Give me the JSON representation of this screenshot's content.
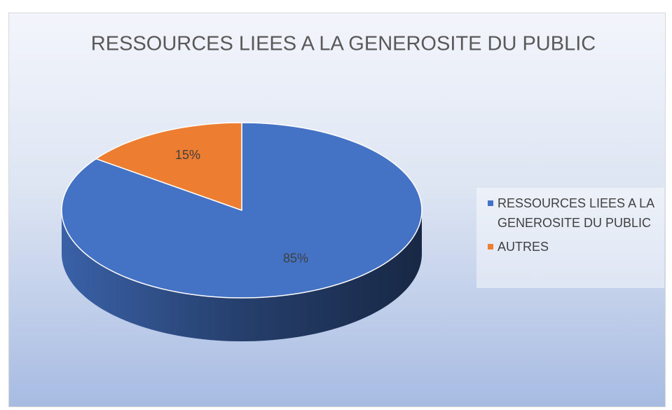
{
  "chart_data": {
    "type": "pie",
    "title": "RESSOURCES LIEES A LA GENEROSITE DU PUBLIC",
    "categories": [
      "RESSOURCES LIEES A LA GENEROSITE DU PUBLIC",
      "AUTRES"
    ],
    "values": [
      85,
      15
    ],
    "value_labels": [
      "85%",
      "15%"
    ],
    "colors": [
      "#4472c4",
      "#ed7d31"
    ],
    "legend": "right"
  }
}
